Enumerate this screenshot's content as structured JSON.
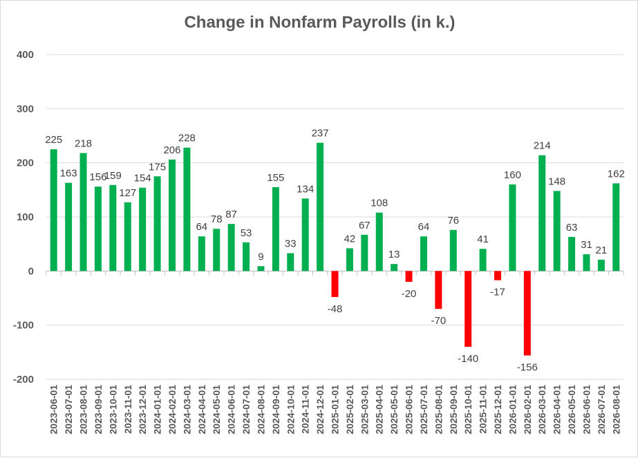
{
  "chart_data": {
    "type": "bar",
    "title": "Change in Nonfarm Payrolls (in k.)",
    "xlabel": "",
    "ylabel": "",
    "ylim": [
      -200,
      400
    ],
    "yticks": [
      -200,
      -100,
      0,
      100,
      200,
      300,
      400
    ],
    "grid": true,
    "legend": "none",
    "colors": {
      "positive": "#00b050",
      "negative": "#ff0000",
      "grid": "#d9d9d9",
      "text": "#595959"
    },
    "categories": [
      "2023-06-01",
      "2023-07-01",
      "2023-08-01",
      "2023-09-01",
      "2023-10-01",
      "2023-11-01",
      "2023-12-01",
      "2024-01-01",
      "2024-02-01",
      "2024-03-01",
      "2024-04-01",
      "2024-05-01",
      "2024-06-01",
      "2024-07-01",
      "2024-08-01",
      "2024-09-01",
      "2024-10-01",
      "2024-11-01",
      "2024-12-01",
      "2025-01-01",
      "2025-02-01",
      "2025-03-01",
      "2025-04-01",
      "2025-05-01",
      "2025-06-01",
      "2025-07-01",
      "2025-08-01",
      "2025-09-01",
      "2025-10-01",
      "2025-11-01",
      "2025-12-01",
      "2026-01-01",
      "2026-02-01",
      "2026-03-01",
      "2026-04-01",
      "2026-05-01",
      "2026-06-01",
      "2026-07-01",
      "2026-08-01"
    ],
    "values": [
      225,
      163,
      218,
      156,
      159,
      127,
      154,
      175,
      206,
      228,
      64,
      78,
      87,
      53,
      9,
      155,
      33,
      134,
      237,
      -48,
      42,
      67,
      108,
      13,
      -20,
      64,
      -70,
      76,
      -140,
      41,
      -17,
      160,
      -156,
      214,
      148,
      63,
      31,
      21,
      162
    ]
  }
}
